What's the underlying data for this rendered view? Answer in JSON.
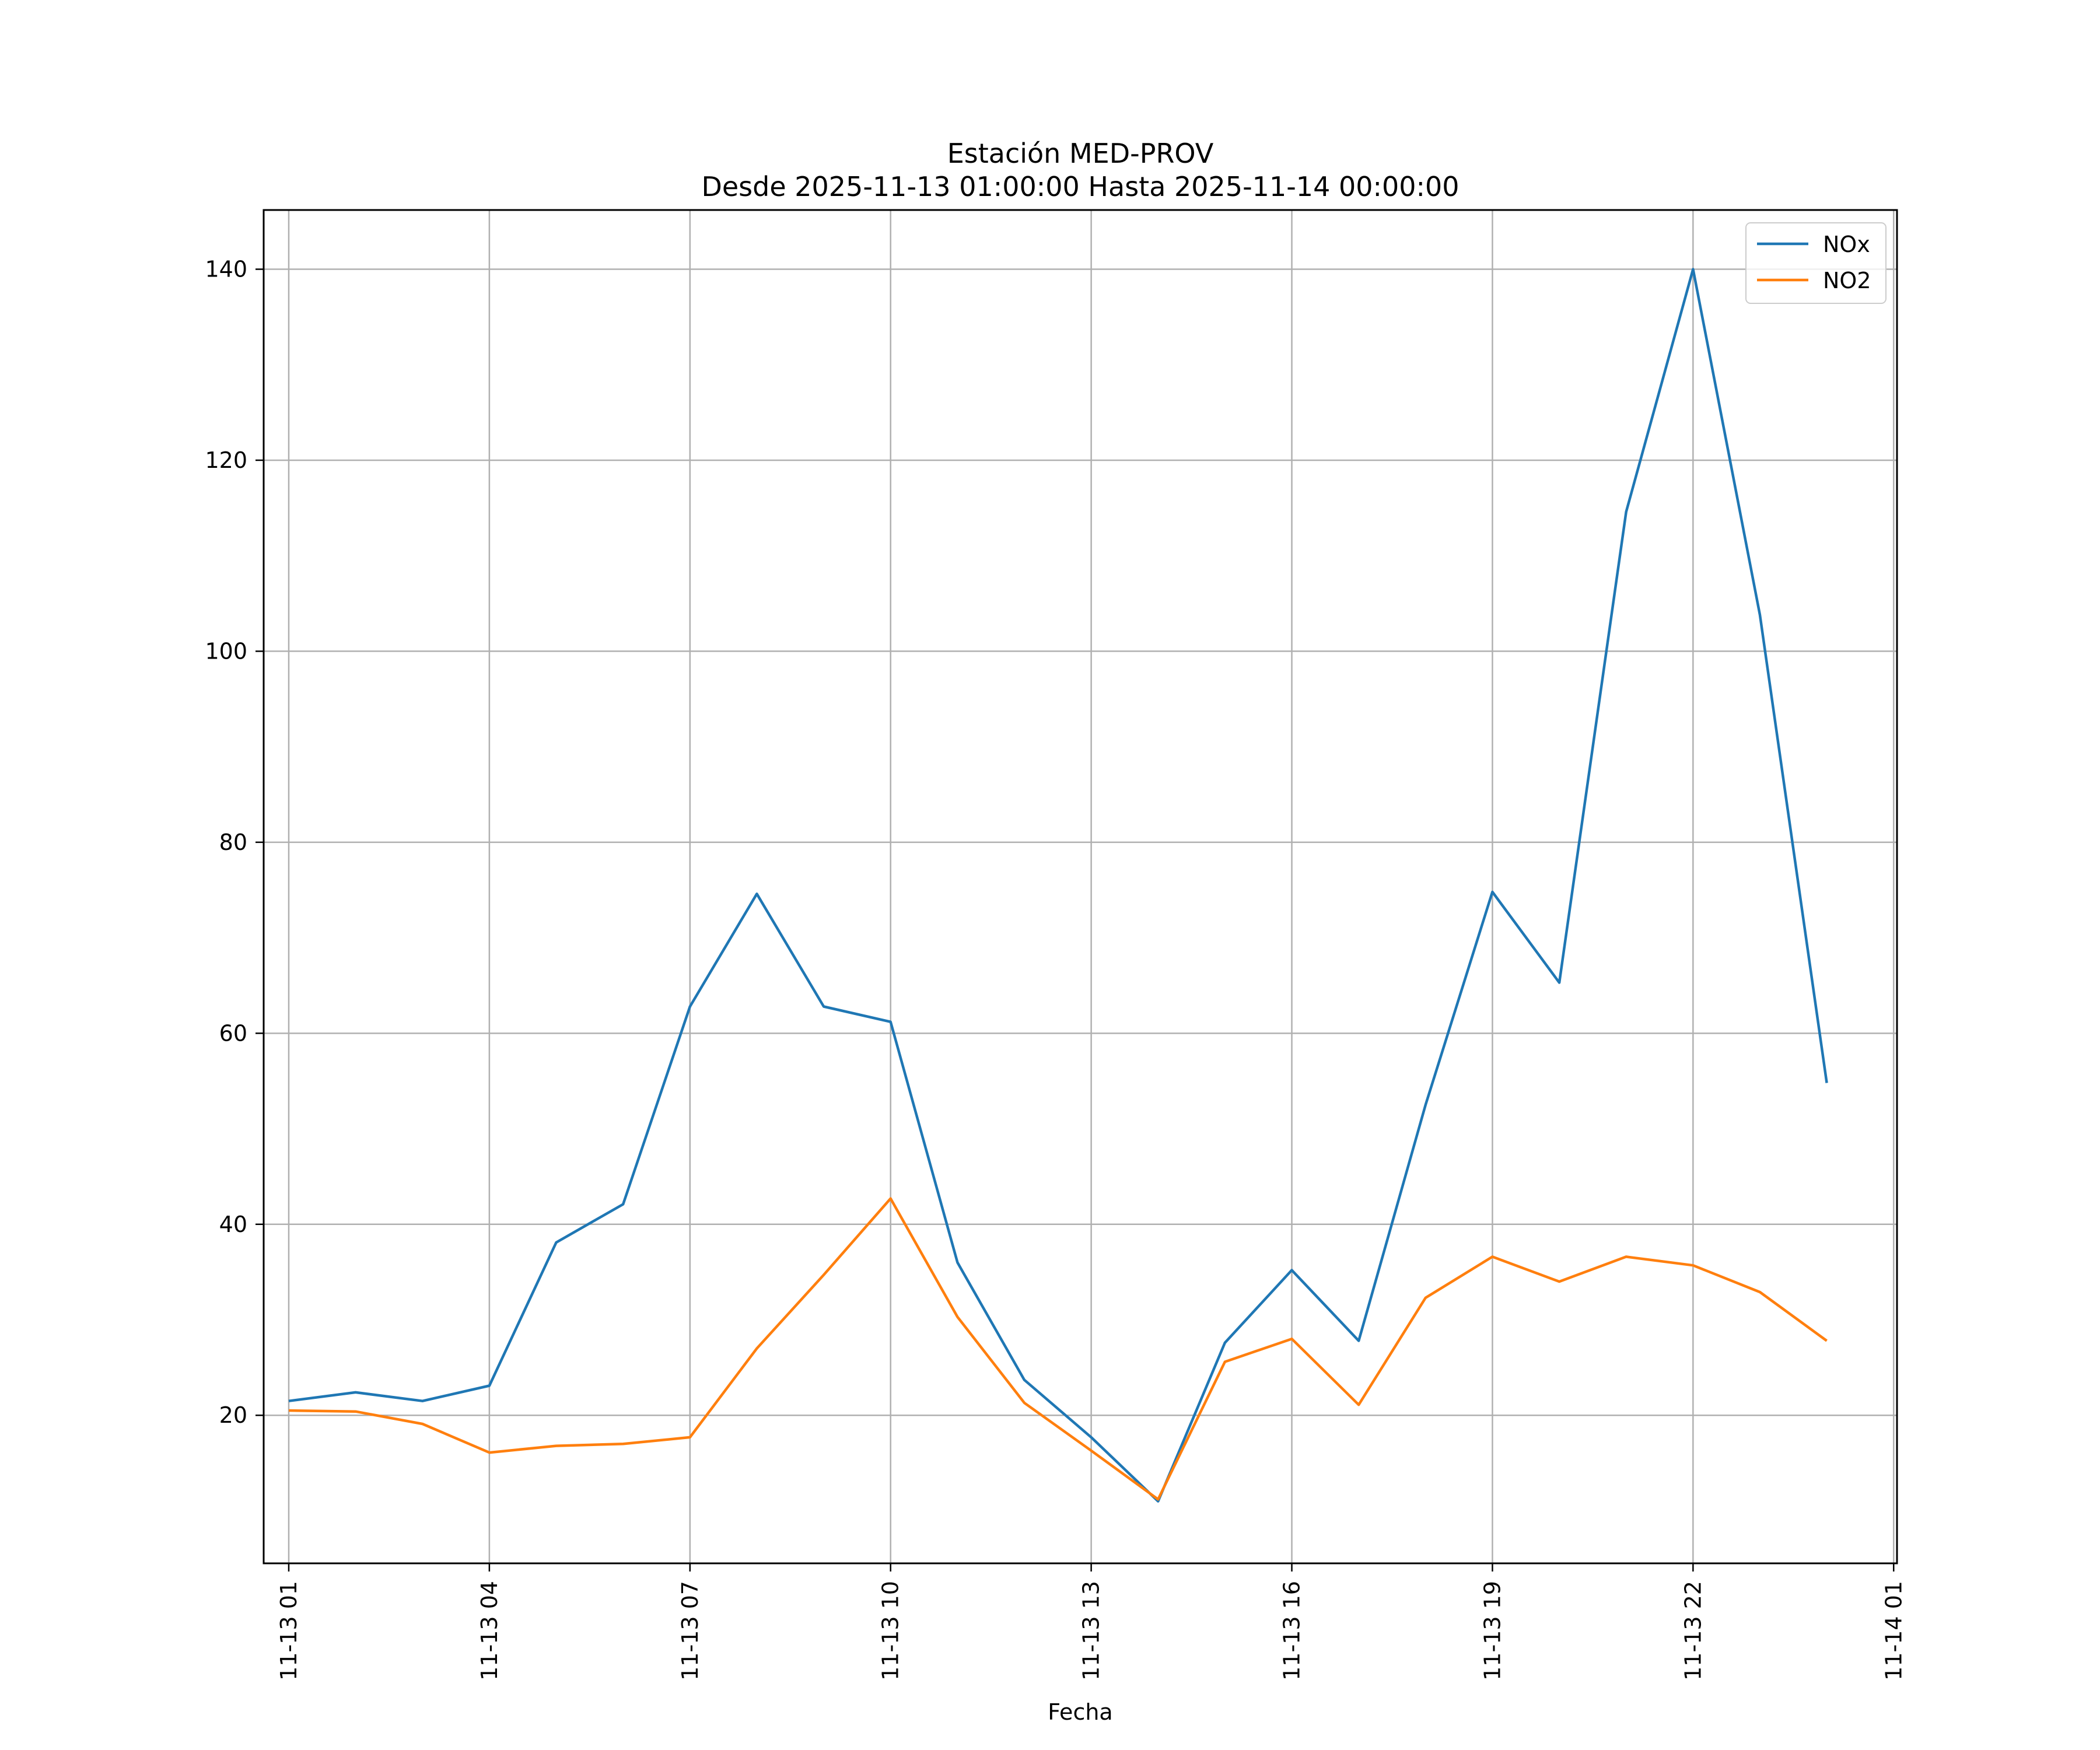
{
  "chart_data": {
    "type": "line",
    "title": "Estación MED-PROV",
    "subtitle": "Desde 2025-11-13 01:00:00 Hasta 2025-11-14 00:00:00",
    "xlabel": "Fecha",
    "ylabel": "",
    "x": [
      "11-13 01:00",
      "11-13 02:00",
      "11-13 03:00",
      "11-13 04:00",
      "11-13 05:00",
      "11-13 06:00",
      "11-13 07:00",
      "11-13 08:00",
      "11-13 09:00",
      "11-13 10:00",
      "11-13 11:00",
      "11-13 12:00",
      "11-13 13:00",
      "11-13 14:00",
      "11-13 15:00",
      "11-13 16:00",
      "11-13 17:00",
      "11-13 18:00",
      "11-13 19:00",
      "11-13 20:00",
      "11-13 21:00",
      "11-13 22:00",
      "11-13 23:00",
      "11-14 00:00"
    ],
    "x_ticks": [
      "11-13 01",
      "11-13 04",
      "11-13 07",
      "11-13 10",
      "11-13 13",
      "11-13 16",
      "11-13 19",
      "11-13 22",
      "11-14 01"
    ],
    "y_ticks": [
      "20",
      "40",
      "60",
      "80",
      "100",
      "120",
      "140"
    ],
    "ylim": [
      4.5,
      146.2
    ],
    "grid": true,
    "legend_position": "top-right",
    "series": [
      {
        "name": "NOx",
        "color": "#1f77b4",
        "values": [
          21.5,
          22.4,
          21.5,
          23.1,
          38.1,
          42.1,
          62.8,
          74.6,
          62.8,
          61.2,
          36.0,
          23.7,
          17.7,
          11.0,
          27.6,
          35.2,
          27.8,
          52.5,
          74.8,
          65.3,
          114.6,
          140.0,
          103.8,
          54.8
        ]
      },
      {
        "name": "NO2",
        "color": "#ff7f0e",
        "values": [
          20.5,
          20.4,
          19.1,
          16.1,
          16.8,
          17.0,
          17.7,
          27.0,
          34.7,
          42.7,
          30.3,
          21.3,
          16.3,
          11.2,
          25.6,
          28.0,
          21.1,
          32.3,
          36.6,
          34.0,
          36.6,
          35.7,
          32.9,
          27.8
        ]
      }
    ]
  }
}
